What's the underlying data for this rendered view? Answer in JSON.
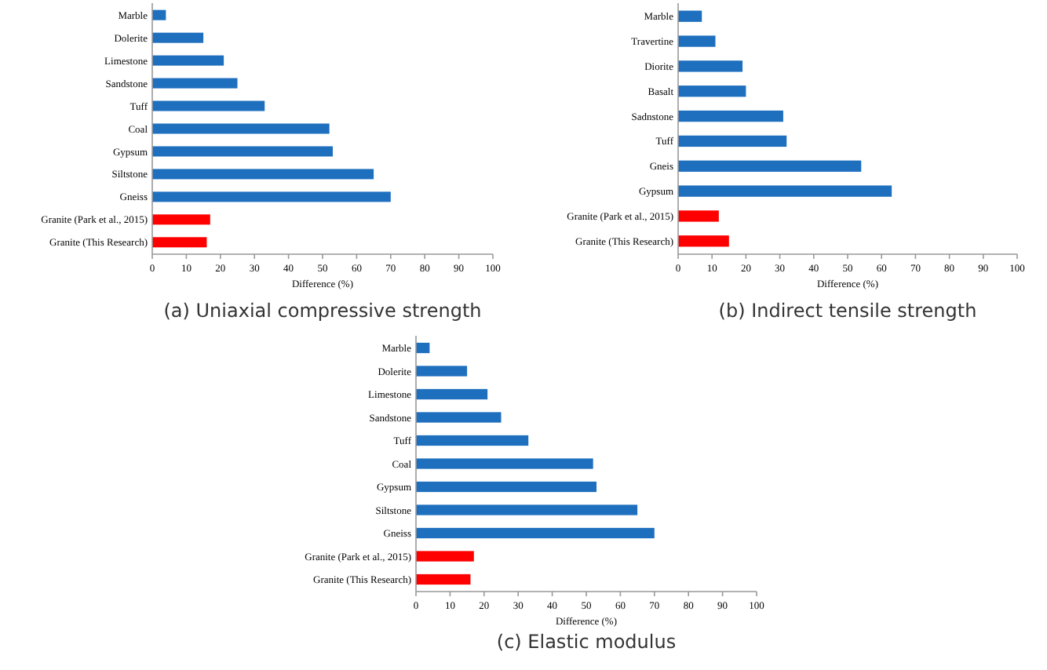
{
  "chart_data": [
    {
      "type": "bar",
      "orientation": "horizontal",
      "title": "(a) Uniaxial compressive strength",
      "xlabel": "Difference (%)",
      "categories": [
        "Marble",
        "Dolerite",
        "Limestone",
        "Sandstone",
        "Tuff",
        "Coal",
        "Gypsum",
        "Siltstone",
        "Gneiss",
        "Granite (Park et al., 2015)",
        "Granite (This Research)"
      ],
      "values": [
        4,
        15,
        21,
        25,
        33,
        52,
        53,
        65,
        70,
        17,
        16
      ],
      "colors": [
        "#1f6fbf",
        "#1f6fbf",
        "#1f6fbf",
        "#1f6fbf",
        "#1f6fbf",
        "#1f6fbf",
        "#1f6fbf",
        "#1f6fbf",
        "#1f6fbf",
        "#ff0000",
        "#ff0000"
      ],
      "xlim": [
        0,
        100
      ],
      "xticks": [
        0,
        10,
        20,
        30,
        40,
        50,
        60,
        70,
        80,
        90,
        100
      ],
      "grid": false
    },
    {
      "type": "bar",
      "orientation": "horizontal",
      "title": "(b) Indirect tensile strength",
      "xlabel": "Difference (%)",
      "categories": [
        "Marble",
        "Travertine",
        "Diorite",
        "Basalt",
        "Sadnstone",
        "Tuff",
        "Gneis",
        "Gypsum",
        "Granite (Park et al., 2015)",
        "Granite (This Research)"
      ],
      "values": [
        7,
        11,
        19,
        20,
        31,
        32,
        54,
        63,
        12,
        15
      ],
      "colors": [
        "#1f6fbf",
        "#1f6fbf",
        "#1f6fbf",
        "#1f6fbf",
        "#1f6fbf",
        "#1f6fbf",
        "#1f6fbf",
        "#1f6fbf",
        "#ff0000",
        "#ff0000"
      ],
      "xlim": [
        0,
        100
      ],
      "xticks": [
        0,
        10,
        20,
        30,
        40,
        50,
        60,
        70,
        80,
        90,
        100
      ],
      "grid": false
    },
    {
      "type": "bar",
      "orientation": "horizontal",
      "title": "(c) Elastic modulus",
      "xlabel": "Difference (%)",
      "categories": [
        "Marble",
        "Dolerite",
        "Limestone",
        "Sandstone",
        "Tuff",
        "Coal",
        "Gypsum",
        "Siltstone",
        "Gneiss",
        "Granite (Park et al., 2015)",
        "Granite (This Research)"
      ],
      "values": [
        4,
        15,
        21,
        25,
        33,
        52,
        53,
        65,
        70,
        17,
        16
      ],
      "colors": [
        "#1f6fbf",
        "#1f6fbf",
        "#1f6fbf",
        "#1f6fbf",
        "#1f6fbf",
        "#1f6fbf",
        "#1f6fbf",
        "#1f6fbf",
        "#1f6fbf",
        "#ff0000",
        "#ff0000"
      ],
      "xlim": [
        0,
        100
      ],
      "xticks": [
        0,
        10,
        20,
        30,
        40,
        50,
        60,
        70,
        80,
        90,
        100
      ],
      "grid": false
    }
  ]
}
